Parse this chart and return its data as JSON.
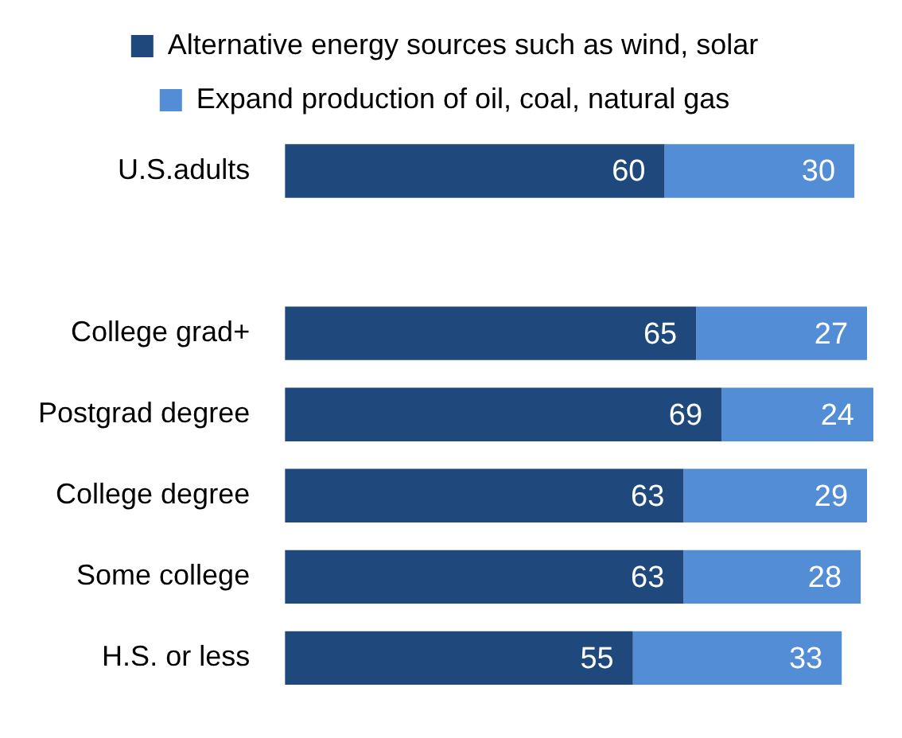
{
  "chart_data": {
    "type": "bar",
    "orientation": "horizontal",
    "stacked": true,
    "categories": [
      "U.S.adults",
      null,
      "College grad+",
      "Postgrad degree",
      "College degree",
      "Some college",
      "H.S. or less"
    ],
    "series": [
      {
        "name": "Alternative energy sources such as wind, solar",
        "color": "#1f497d",
        "values": [
          60,
          null,
          65,
          69,
          63,
          63,
          55
        ]
      },
      {
        "name": "Expand production of oil, coal, natural gas",
        "color": "#538dd5",
        "values": [
          30,
          null,
          27,
          24,
          29,
          28,
          33
        ]
      }
    ],
    "data_labels": true,
    "legend": "top",
    "tick_labels": "y",
    "grid": false
  }
}
